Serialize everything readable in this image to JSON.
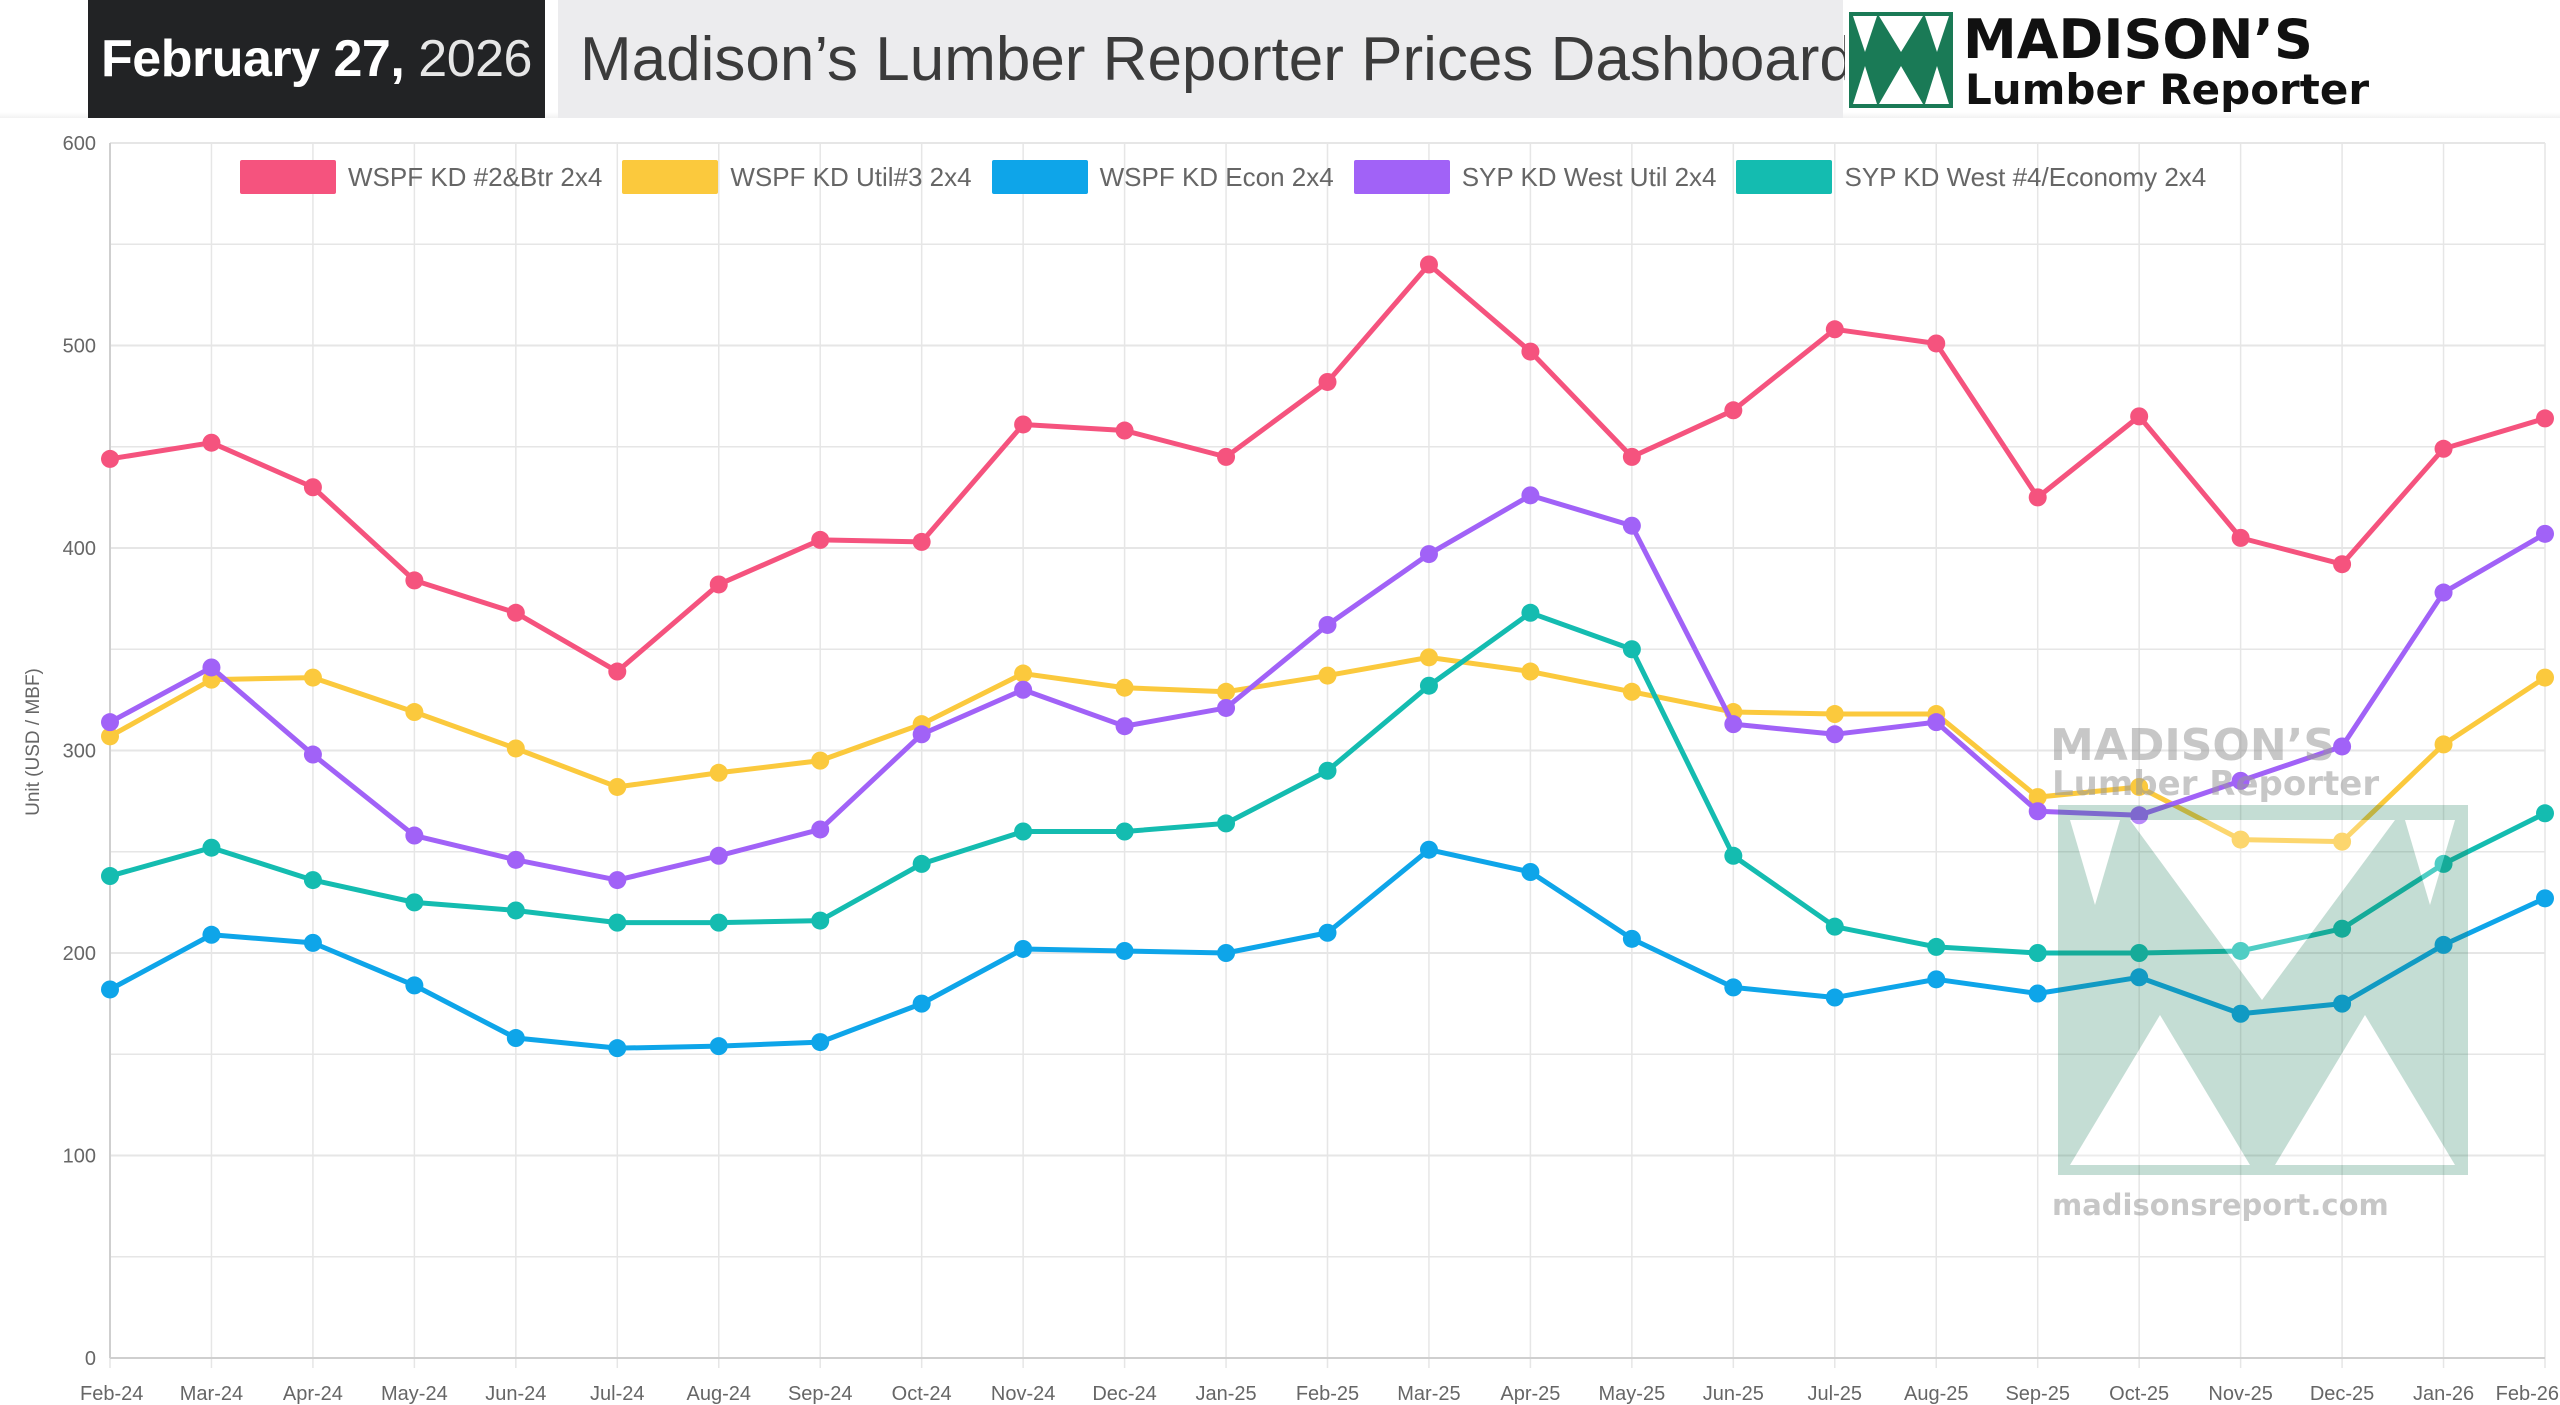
{
  "header": {
    "date_bold": "February 27,",
    "date_year": "2026",
    "title": "Madison’s Lumber Reporter Prices Dashboard",
    "logo_line1": "MADISON’S",
    "logo_line2": "Lumber Reporter"
  },
  "watermark": {
    "line1": "MADISON’S",
    "line2": "Lumber Reporter",
    "url": "madisonsreport.com"
  },
  "colors": {
    "wspf_2btr": "#f5537e",
    "wspf_util3": "#fbc93d",
    "wspf_econ": "#0ea5e9",
    "syp_util": "#a162f7",
    "syp_econ": "#14bcb0",
    "logo_green": "#1a7a56"
  },
  "chart_data": {
    "type": "line",
    "ylabel": "Unit (USD / MBF)",
    "ylim": [
      0,
      600
    ],
    "yticks": [
      0,
      100,
      200,
      300,
      400,
      500,
      600
    ],
    "grid": true,
    "legend_position": "top",
    "categories": [
      "Feb-24",
      "Mar-24",
      "Apr-24",
      "May-24",
      "Jun-24",
      "Jul-24",
      "Aug-24",
      "Sep-24",
      "Oct-24",
      "Nov-24",
      "Dec-24",
      "Jan-25",
      "Feb-25",
      "Mar-25",
      "Apr-25",
      "May-25",
      "Jun-25",
      "Jul-25",
      "Aug-25",
      "Sep-25",
      "Oct-25",
      "Nov-25",
      "Dec-25",
      "Jan-26",
      "Feb-26"
    ],
    "series": [
      {
        "name": "WSPF KD #2&Btr 2x4",
        "color": "#f5537e",
        "values": [
          444,
          452,
          430,
          384,
          368,
          339,
          382,
          404,
          403,
          461,
          458,
          445,
          482,
          540,
          497,
          445,
          468,
          508,
          501,
          425,
          465,
          405,
          392,
          449,
          464
        ]
      },
      {
        "name": "WSPF KD Util#3 2x4",
        "color": "#fbc93d",
        "values": [
          307,
          335,
          336,
          319,
          301,
          282,
          289,
          295,
          313,
          338,
          331,
          329,
          337,
          346,
          339,
          329,
          319,
          318,
          318,
          277,
          282,
          256,
          255,
          303,
          336
        ]
      },
      {
        "name": "WSPF KD Econ 2x4",
        "color": "#0ea5e9",
        "values": [
          182,
          209,
          205,
          184,
          158,
          153,
          154,
          156,
          175,
          202,
          201,
          200,
          210,
          251,
          240,
          207,
          183,
          178,
          187,
          180,
          188,
          170,
          175,
          204,
          227
        ]
      },
      {
        "name": "SYP KD West Util 2x4",
        "color": "#a162f7",
        "values": [
          314,
          341,
          298,
          258,
          246,
          236,
          248,
          261,
          308,
          330,
          312,
          321,
          362,
          397,
          426,
          411,
          313,
          308,
          314,
          270,
          268,
          285,
          302,
          378,
          407
        ]
      },
      {
        "name": "SYP KD West #4/Economy 2x4",
        "color": "#14bcb0",
        "values": [
          238,
          252,
          236,
          225,
          221,
          215,
          215,
          216,
          244,
          260,
          260,
          264,
          290,
          332,
          368,
          350,
          248,
          213,
          203,
          200,
          200,
          201,
          212,
          244,
          269
        ]
      }
    ]
  }
}
